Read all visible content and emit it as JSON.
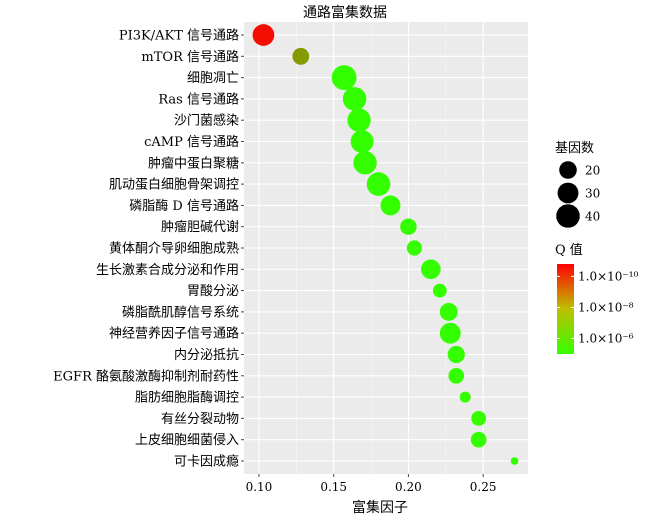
{
  "chart_data": {
    "type": "scatter",
    "title": "通路富集数据",
    "xlabel": "富集因子",
    "ylabel": "",
    "xlim": [
      0.09,
      0.28
    ],
    "xticks": [
      0.1,
      0.15,
      0.2,
      0.25
    ],
    "xtick_labels": [
      "0.10",
      "0.15",
      "0.20",
      "0.25"
    ],
    "grid": true,
    "background": "#ebebeb",
    "categories": [
      "PI3K/AKT 信号通路",
      "mTOR 信号通路",
      "细胞凋亡",
      "Ras 信号通路",
      "沙门菌感染",
      "cAMP 信号通路",
      "肿瘤中蛋白聚糖",
      "肌动蛋白细胞骨架调控",
      "磷脂酶 D 信号通路",
      "肿瘤胆碱代谢",
      "黄体酮介导卵细胞成熟",
      "生长激素合成分泌和作用",
      "胃酸分泌",
      "磷脂酰肌醇信号系统",
      "神经营养因子信号通路",
      "内分泌抵抗",
      "EGFR 酪氨酸激酶抑制剂耐药性",
      "脂肪细胞脂酶调控",
      "有丝分裂动物",
      "上皮细胞细菌侵入",
      "可卡因成瘾"
    ],
    "points": [
      {
        "x": 0.103,
        "count": 33,
        "q_exp": -10.5
      },
      {
        "x": 0.128,
        "count": 18,
        "q_exp": -7.3
      },
      {
        "x": 0.157,
        "count": 45,
        "q_exp": -5.0
      },
      {
        "x": 0.164,
        "count": 40,
        "q_exp": -5.0
      },
      {
        "x": 0.167,
        "count": 39,
        "q_exp": -5.0
      },
      {
        "x": 0.169,
        "count": 37,
        "q_exp": -5.0
      },
      {
        "x": 0.171,
        "count": 39,
        "q_exp": -5.0
      },
      {
        "x": 0.18,
        "count": 40,
        "q_exp": -5.0
      },
      {
        "x": 0.188,
        "count": 27,
        "q_exp": -5.0
      },
      {
        "x": 0.2,
        "count": 17,
        "q_exp": -5.0
      },
      {
        "x": 0.204,
        "count": 14,
        "q_exp": -5.0
      },
      {
        "x": 0.215,
        "count": 26,
        "q_exp": -5.0
      },
      {
        "x": 0.221,
        "count": 11,
        "q_exp": -5.0
      },
      {
        "x": 0.227,
        "count": 21,
        "q_exp": -5.0
      },
      {
        "x": 0.228,
        "count": 30,
        "q_exp": -5.0
      },
      {
        "x": 0.232,
        "count": 19,
        "q_exp": -5.0
      },
      {
        "x": 0.232,
        "count": 15,
        "q_exp": -5.0
      },
      {
        "x": 0.238,
        "count": 6,
        "q_exp": -5.0
      },
      {
        "x": 0.247,
        "count": 13,
        "q_exp": -5.0
      },
      {
        "x": 0.247,
        "count": 15,
        "q_exp": -5.0
      },
      {
        "x": 0.271,
        "count": 2,
        "q_exp": -5.0
      }
    ],
    "size_legend": {
      "title": "基因数",
      "labels": [
        "20",
        "30",
        "40"
      ],
      "values": [
        20,
        30,
        40
      ]
    },
    "color_legend": {
      "title": "Q 值",
      "labels": [
        "1.0×10⁻¹⁰",
        "1.0×10⁻⁸",
        "1.0×10⁻⁶"
      ],
      "exponents": [
        -10,
        -8,
        -6
      ],
      "range": [
        -10.8,
        -5.0
      ],
      "colors": {
        "low": "#ff0000",
        "high": "#33ff00"
      }
    }
  }
}
